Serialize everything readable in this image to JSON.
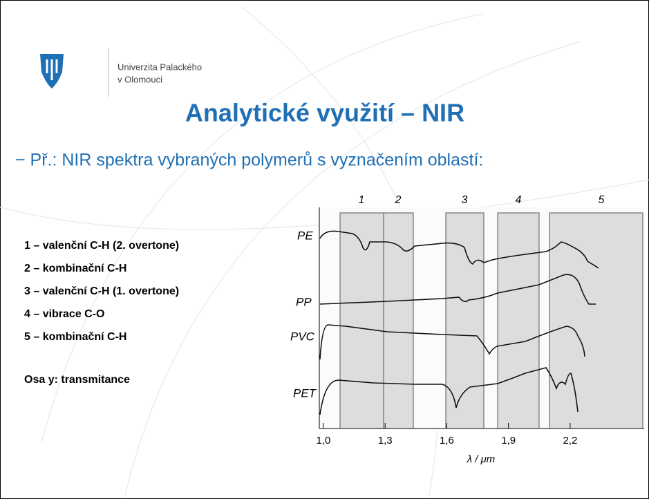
{
  "header": {
    "university_line1": "Univerzita Palackého",
    "university_line2": "v Olomouci"
  },
  "title": "Analytické využití – NIR",
  "bullet": "− Př.: NIR spektra vybraných polymerů s vyznačením oblastí:",
  "legend_items": [
    "1 – valenční C-H (2. overtone)",
    "2 – kombinační C-H",
    "3 – valenční C-H (1. overtone)",
    "4 – vibrace C-O",
    "5 – kombinační C-H"
  ],
  "axis_note": "Osa y: transmitance",
  "figure": {
    "region_labels": [
      "1",
      "2",
      "3",
      "4",
      "5"
    ],
    "curve_labels": [
      "PE",
      "PP",
      "PVC",
      "PET"
    ],
    "x_label": "λ / μm",
    "xlim": [
      0.98,
      2.56
    ],
    "xticks": [
      {
        "value": 1.0,
        "label": "1,0"
      },
      {
        "value": 1.3,
        "label": "1,3"
      },
      {
        "value": 1.6,
        "label": "1,6"
      },
      {
        "value": 1.9,
        "label": "1,9"
      },
      {
        "value": 2.2,
        "label": "2,2"
      }
    ]
  }
}
